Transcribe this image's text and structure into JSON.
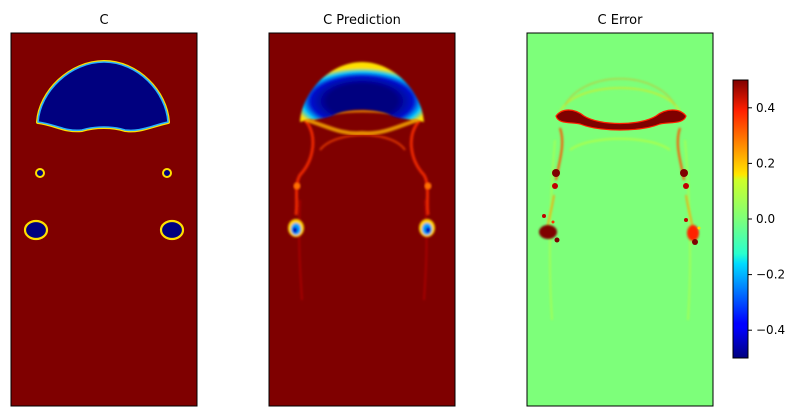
{
  "chart_data": {
    "type": "heatmap",
    "colormap": "jet",
    "panels": [
      {
        "title": "C"
      },
      {
        "title": "C Prediction"
      },
      {
        "title": "C Error"
      }
    ],
    "colorbar": {
      "range": [
        -0.5,
        0.5
      ],
      "ticks": [
        -0.4,
        -0.2,
        0.0,
        0.2,
        0.4
      ],
      "tick_labels": [
        "−0.4",
        "−0.2",
        "0.0",
        "0.2",
        "0.4"
      ]
    }
  }
}
